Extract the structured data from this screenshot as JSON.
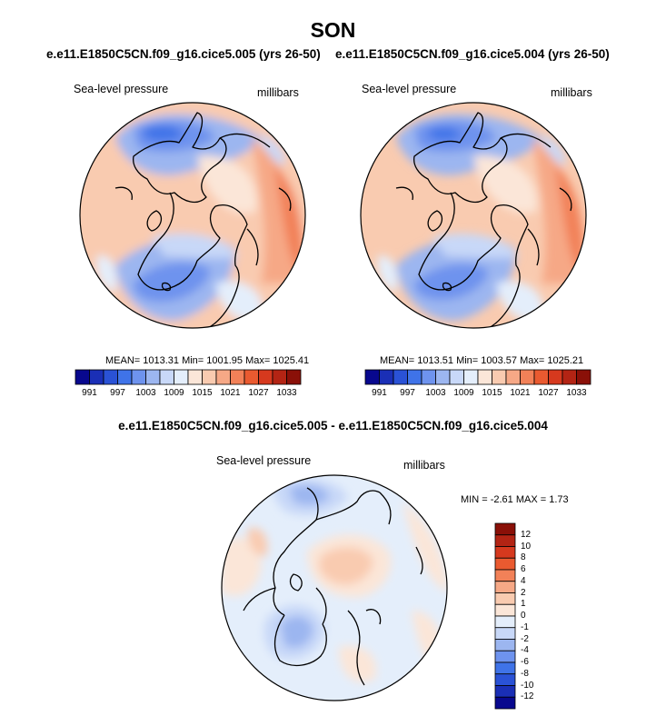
{
  "title": "SON",
  "panels": [
    {
      "case": "e.e11.E1850C5CN.f09_g16.cice5.005 (yrs 26-50)",
      "variable": "Sea-level pressure",
      "units": "millibars",
      "stats": "MEAN= 1013.31  Min= 1001.95  Max= 1025.41"
    },
    {
      "case": "e.e11.E1850C5CN.f09_g16.cice5.004 (yrs 26-50)",
      "variable": "Sea-level pressure",
      "units": "millibars",
      "stats": "MEAN= 1013.51  Min= 1003.57  Max= 1025.21"
    }
  ],
  "difference": {
    "title": "e.e11.E1850C5CN.f09_g16.cice5.005 - e.e11.E1850C5CN.f09_g16.cice5.004",
    "variable": "Sea-level pressure",
    "units": "millibars",
    "stats": "MIN =  -2.61 MAX =   1.73"
  },
  "chart_data": [
    {
      "type": "heatmap",
      "projection": "north-polar-stereographic",
      "title": "e.e11.E1850C5CN.f09_g16.cice5.005 (yrs 26-50)",
      "variable": "Sea-level pressure",
      "units": "millibars",
      "mean": 1013.31,
      "min": 1001.95,
      "max": 1025.41,
      "colorbar_ticks": [
        "991",
        "997",
        "1003",
        "1009",
        "1015",
        "1021",
        "1027",
        "1033"
      ],
      "colorbar_orientation": "horizontal"
    },
    {
      "type": "heatmap",
      "projection": "north-polar-stereographic",
      "title": "e.e11.E1850C5CN.f09_g16.cice5.004 (yrs 26-50)",
      "variable": "Sea-level pressure",
      "units": "millibars",
      "mean": 1013.51,
      "min": 1003.57,
      "max": 1025.21,
      "colorbar_ticks": [
        "991",
        "997",
        "1003",
        "1009",
        "1015",
        "1021",
        "1027",
        "1033"
      ],
      "colorbar_orientation": "horizontal"
    },
    {
      "type": "heatmap",
      "projection": "north-polar-stereographic",
      "title": "e.e11.E1850C5CN.f09_g16.cice5.005 - e.e11.E1850C5CN.f09_g16.cice5.004",
      "variable": "Sea-level pressure",
      "units": "millibars",
      "min": -2.61,
      "max": 1.73,
      "colorbar_ticks": [
        "12",
        "10",
        "8",
        "6",
        "4",
        "2",
        "1",
        "0",
        "-1",
        "-2",
        "-4",
        "-6",
        "-8",
        "-10",
        "-12"
      ],
      "colorbar_orientation": "vertical"
    }
  ],
  "colors": {
    "palette": [
      "#08088e",
      "#1a2fb6",
      "#2a52d6",
      "#3f73e8",
      "#6e93ee",
      "#9cb6f0",
      "#c8d8f8",
      "#e4eefb",
      "#fbe6d8",
      "#f9cbb0",
      "#f6a886",
      "#f28158",
      "#ea5a30",
      "#d6391e",
      "#b32414",
      "#8a1008"
    ],
    "land_outline": "#000000"
  }
}
